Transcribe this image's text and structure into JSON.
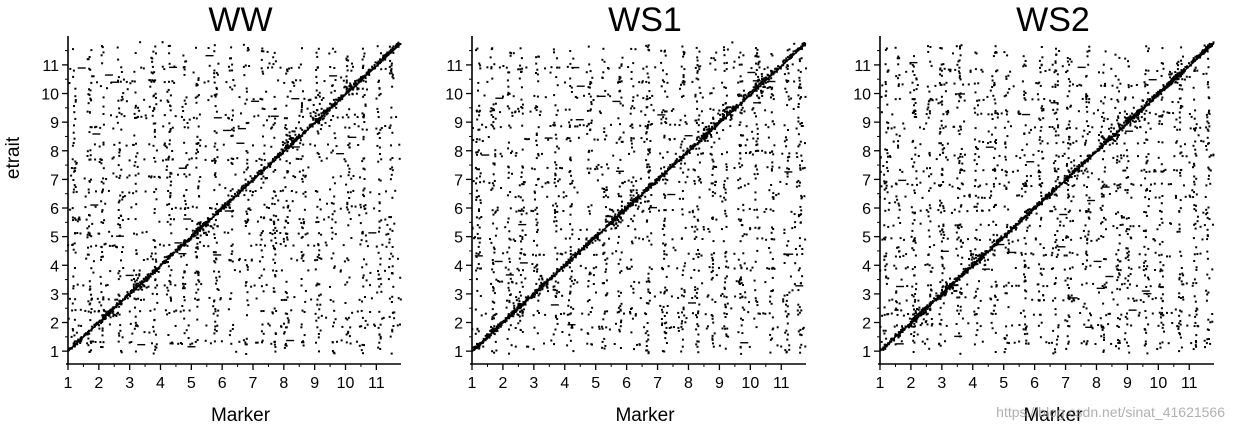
{
  "chart_data": [
    {
      "type": "scatter",
      "title": "WW",
      "xlabel": "Marker",
      "ylabel": "etrait",
      "xlim": [
        1,
        11.8
      ],
      "ylim": [
        0.9,
        11.8
      ],
      "x_ticks": [
        "1",
        "2",
        "3",
        "4",
        "5",
        "6",
        "7",
        "8",
        "9",
        "10",
        "11"
      ],
      "y_ticks": [
        "1",
        "2",
        "3",
        "4",
        "5",
        "6",
        "7",
        "8",
        "9",
        "10",
        "11"
      ],
      "diagonal": true,
      "column_bands": [
        1.2,
        1.7,
        2.1,
        2.7,
        3.2,
        3.8,
        4.3,
        4.8,
        5.2,
        5.8,
        6.3,
        6.8,
        7.3,
        7.7,
        8.1,
        8.6,
        9.1,
        9.6,
        10.1,
        10.6,
        11.1,
        11.5
      ],
      "row_bands": [
        1.3,
        1.9,
        2.4,
        2.8,
        3.3,
        3.8,
        4.2,
        4.7,
        5.1,
        5.6,
        6.0,
        6.6,
        7.1,
        7.7,
        8.2,
        8.8,
        9.2,
        9.8,
        10.4,
        10.9
      ],
      "diagonal_clusters": [
        [
          2.4,
          2.4
        ],
        [
          3.3,
          3.3
        ],
        [
          5.4,
          5.4
        ],
        [
          7.3,
          7.3
        ],
        [
          8.3,
          8.3
        ],
        [
          9.2,
          9.2
        ],
        [
          10.2,
          10.2
        ]
      ],
      "approx_points": 2600
    },
    {
      "type": "scatter",
      "title": "WS1",
      "xlabel": "Marker",
      "ylabel": "",
      "xlim": [
        1,
        11.8
      ],
      "ylim": [
        0.9,
        11.8
      ],
      "x_ticks": [
        "1",
        "2",
        "3",
        "4",
        "5",
        "6",
        "7",
        "8",
        "9",
        "10",
        "11"
      ],
      "y_ticks": [
        "1",
        "2",
        "3",
        "4",
        "5",
        "6",
        "7",
        "8",
        "9",
        "10",
        "11"
      ],
      "diagonal": true,
      "column_bands": [
        1.2,
        1.7,
        2.2,
        2.6,
        3.1,
        3.7,
        4.2,
        4.8,
        5.3,
        5.8,
        6.2,
        6.7,
        7.2,
        7.8,
        8.3,
        8.8,
        9.2,
        9.7,
        10.2,
        10.7,
        11.2,
        11.6
      ],
      "row_bands": [
        1.2,
        1.8,
        2.3,
        2.9,
        3.4,
        3.9,
        4.4,
        4.9,
        5.3,
        5.9,
        6.4,
        6.9,
        7.4,
        7.9,
        8.4,
        8.9,
        9.4,
        9.9,
        10.4,
        10.9
      ],
      "diagonal_clusters": [
        [
          2.5,
          2.5
        ],
        [
          3.3,
          3.3
        ],
        [
          5.6,
          5.6
        ],
        [
          6.3,
          6.3
        ],
        [
          8.6,
          8.6
        ],
        [
          9.3,
          9.3
        ],
        [
          10.3,
          10.3
        ]
      ],
      "approx_points": 2800
    },
    {
      "type": "scatter",
      "title": "WS2",
      "xlabel": "Marker",
      "ylabel": "",
      "xlim": [
        1,
        11.8
      ],
      "ylim": [
        0.9,
        11.8
      ],
      "x_ticks": [
        "1",
        "2",
        "3",
        "4",
        "5",
        "6",
        "7",
        "8",
        "9",
        "10",
        "11"
      ],
      "y_ticks": [
        "1",
        "2",
        "3",
        "4",
        "5",
        "6",
        "7",
        "8",
        "9",
        "10",
        "11"
      ],
      "diagonal": true,
      "column_bands": [
        1.2,
        1.6,
        2.1,
        2.6,
        3.0,
        3.6,
        4.1,
        4.7,
        5.1,
        5.7,
        6.2,
        6.7,
        7.1,
        7.7,
        8.2,
        8.7,
        9.0,
        9.6,
        10.1,
        10.7,
        11.2,
        11.6
      ],
      "row_bands": [
        1.3,
        1.9,
        2.3,
        2.8,
        3.3,
        3.9,
        4.4,
        4.9,
        5.4,
        5.9,
        6.4,
        6.8,
        7.3,
        7.8,
        8.3,
        8.8,
        9.3,
        9.8,
        10.3,
        10.8
      ],
      "diagonal_clusters": [
        [
          2.3,
          2.3
        ],
        [
          3.2,
          3.2
        ],
        [
          4.2,
          4.2
        ],
        [
          7.3,
          7.3
        ],
        [
          8.4,
          8.4
        ],
        [
          9.2,
          9.2
        ],
        [
          10.6,
          10.6
        ]
      ],
      "approx_points": 2900
    }
  ],
  "watermark": "https://blog.csdn.net/sinat_41621566",
  "colors": {
    "ink": "#000000",
    "background": "#ffffff",
    "watermark": "#969696"
  }
}
